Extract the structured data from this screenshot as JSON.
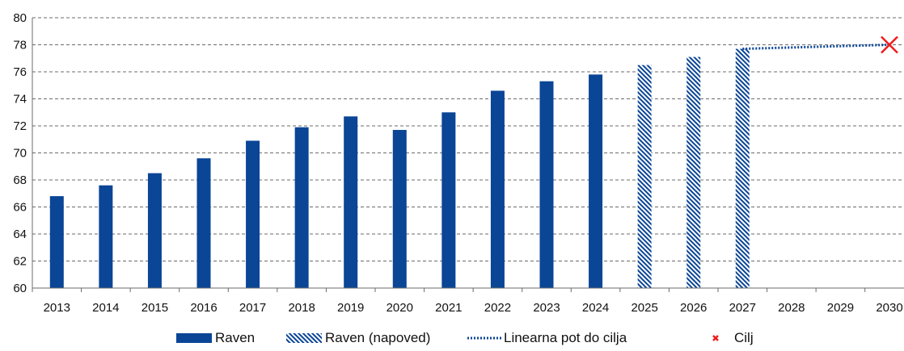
{
  "chart_data": {
    "type": "bar",
    "categories": [
      "2013",
      "2014",
      "2015",
      "2016",
      "2017",
      "2018",
      "2019",
      "2020",
      "2021",
      "2022",
      "2023",
      "2024",
      "2025",
      "2026",
      "2027",
      "2028",
      "2029",
      "2030"
    ],
    "series": [
      {
        "name": "Raven",
        "type": "bar",
        "color": "#0a4596",
        "values": [
          66.8,
          67.6,
          68.5,
          69.6,
          70.9,
          71.9,
          72.7,
          71.7,
          73.0,
          74.6,
          75.3,
          75.8,
          null,
          null,
          null,
          null,
          null,
          null
        ]
      },
      {
        "name": "Raven (napoved)",
        "type": "bar-hatched",
        "color": "#0a4596",
        "values": [
          null,
          null,
          null,
          null,
          null,
          null,
          null,
          null,
          null,
          null,
          null,
          null,
          76.5,
          77.1,
          77.7,
          null,
          null,
          null
        ]
      },
      {
        "name": "Linearna pot do cilja",
        "type": "line-dotted",
        "color": "#0a4596",
        "values": [
          null,
          null,
          null,
          null,
          null,
          null,
          null,
          null,
          null,
          null,
          null,
          null,
          null,
          null,
          77.7,
          77.8,
          77.9,
          78.0
        ]
      },
      {
        "name": "Cilj",
        "type": "marker-x",
        "color": "#ee1c1c",
        "values": [
          null,
          null,
          null,
          null,
          null,
          null,
          null,
          null,
          null,
          null,
          null,
          null,
          null,
          null,
          null,
          null,
          null,
          78.0
        ]
      }
    ],
    "title": "",
    "xlabel": "",
    "ylabel": "",
    "ylim": [
      60,
      80
    ],
    "yticks": [
      60,
      62,
      64,
      66,
      68,
      70,
      72,
      74,
      76,
      78,
      80
    ],
    "grid": "horizontal dashed",
    "legend": "bottom"
  }
}
